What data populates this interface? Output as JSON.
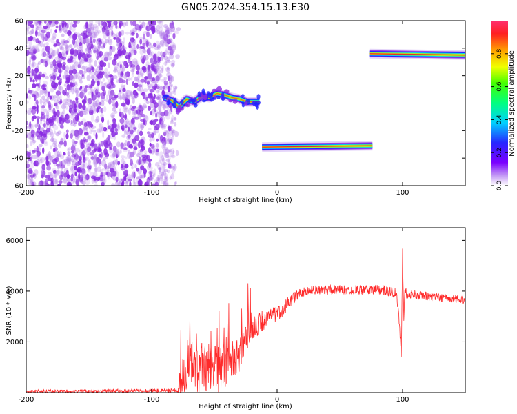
{
  "title": "GN05.2024.354.15.13.E30",
  "colors": {
    "snr_line": "#ff2a2a",
    "cluster": "#8a2be2",
    "noise": "#b07ae8",
    "track_core": "#e0302a",
    "track_mid": "#7ee84a",
    "track_edge": "#2222ff"
  },
  "chart_data": [
    {
      "type": "heatmap",
      "xlabel": "Height of straight line (km)",
      "ylabel": "Frequency (Hz)",
      "xlim": [
        -200,
        150
      ],
      "ylim": [
        -60,
        60
      ],
      "xticks": [
        -200,
        -100,
        0,
        100
      ],
      "yticks": [
        60,
        40,
        20,
        0,
        -20,
        -40,
        -60
      ],
      "xtick_labels": [
        "-200",
        "-100",
        "0",
        "100"
      ],
      "ytick_labels": [
        "60",
        "40",
        "20",
        "0",
        "-20",
        "-40",
        "-60"
      ],
      "colorbar": {
        "label": "Normalized spectral amplitude",
        "range": [
          0,
          1
        ],
        "ticks": [
          0.0,
          0.2,
          0.4,
          0.6,
          0.8
        ],
        "tick_labels": [
          "0.0",
          "0.2",
          "0.4",
          "0.6",
          "0.8"
        ]
      },
      "noise_region": {
        "x": [
          -200,
          -82
        ],
        "y": [
          -60,
          60
        ],
        "amplitude": 0.15
      },
      "tracks": [
        {
          "x": [
            -90,
            -84,
            -78,
            -72,
            -66,
            -60,
            -54,
            -48,
            -42,
            -36,
            -30,
            -24,
            -18,
            -14
          ],
          "y": [
            4,
            2,
            -3,
            3,
            1,
            5,
            4,
            7,
            6,
            4,
            3,
            1,
            1,
            1
          ],
          "amplitude": 0.55
        },
        {
          "x": [
            -12,
            76
          ],
          "y": [
            -32,
            -31
          ],
          "amplitude": 0.95
        },
        {
          "x": [
            74,
            150
          ],
          "y": [
            36,
            35
          ],
          "amplitude": 0.9
        }
      ]
    },
    {
      "type": "line",
      "xlabel": "Height of straight line (km)",
      "ylabel": "SNR (10 * v/v)",
      "xlim": [
        -200,
        150
      ],
      "ylim": [
        0,
        6500
      ],
      "xticks": [
        -200,
        -100,
        0,
        100
      ],
      "yticks": [
        2000,
        4000,
        6000
      ],
      "xtick_labels": [
        "-200",
        "-100",
        "0",
        "100"
      ],
      "ytick_labels": [
        "2000",
        "4000",
        "6000"
      ],
      "envelope": {
        "x": [
          -200,
          -80,
          -76,
          -73,
          -70,
          -65,
          -60,
          -55,
          -50,
          -45,
          -40,
          -35,
          -30,
          -25,
          -20,
          -15,
          -10,
          -5,
          0,
          5,
          10,
          15,
          20,
          25,
          30,
          40,
          50,
          60,
          70,
          80,
          90,
          95,
          97,
          99,
          100,
          101,
          102,
          103,
          105,
          110,
          120,
          130,
          140,
          150
        ],
        "y": [
          50,
          80,
          300,
          900,
          1600,
          800,
          1000,
          900,
          1100,
          800,
          1100,
          1300,
          1500,
          2200,
          2500,
          2700,
          2900,
          3000,
          3100,
          3300,
          3600,
          3800,
          3950,
          4000,
          4050,
          4050,
          4050,
          4050,
          4050,
          4050,
          4000,
          3900,
          3000,
          1500,
          5500,
          3000,
          4200,
          3900,
          3850,
          3850,
          3800,
          3750,
          3700,
          3650
        ]
      },
      "noise_amplitude": [
        {
          "x": -200,
          "a": 60
        },
        {
          "x": -82,
          "a": 70
        },
        {
          "x": -75,
          "a": 900
        },
        {
          "x": -40,
          "a": 900
        },
        {
          "x": -20,
          "a": 500
        },
        {
          "x": 0,
          "a": 300
        },
        {
          "x": 20,
          "a": 180
        },
        {
          "x": 95,
          "a": 200
        },
        {
          "x": 150,
          "a": 150
        }
      ]
    }
  ]
}
